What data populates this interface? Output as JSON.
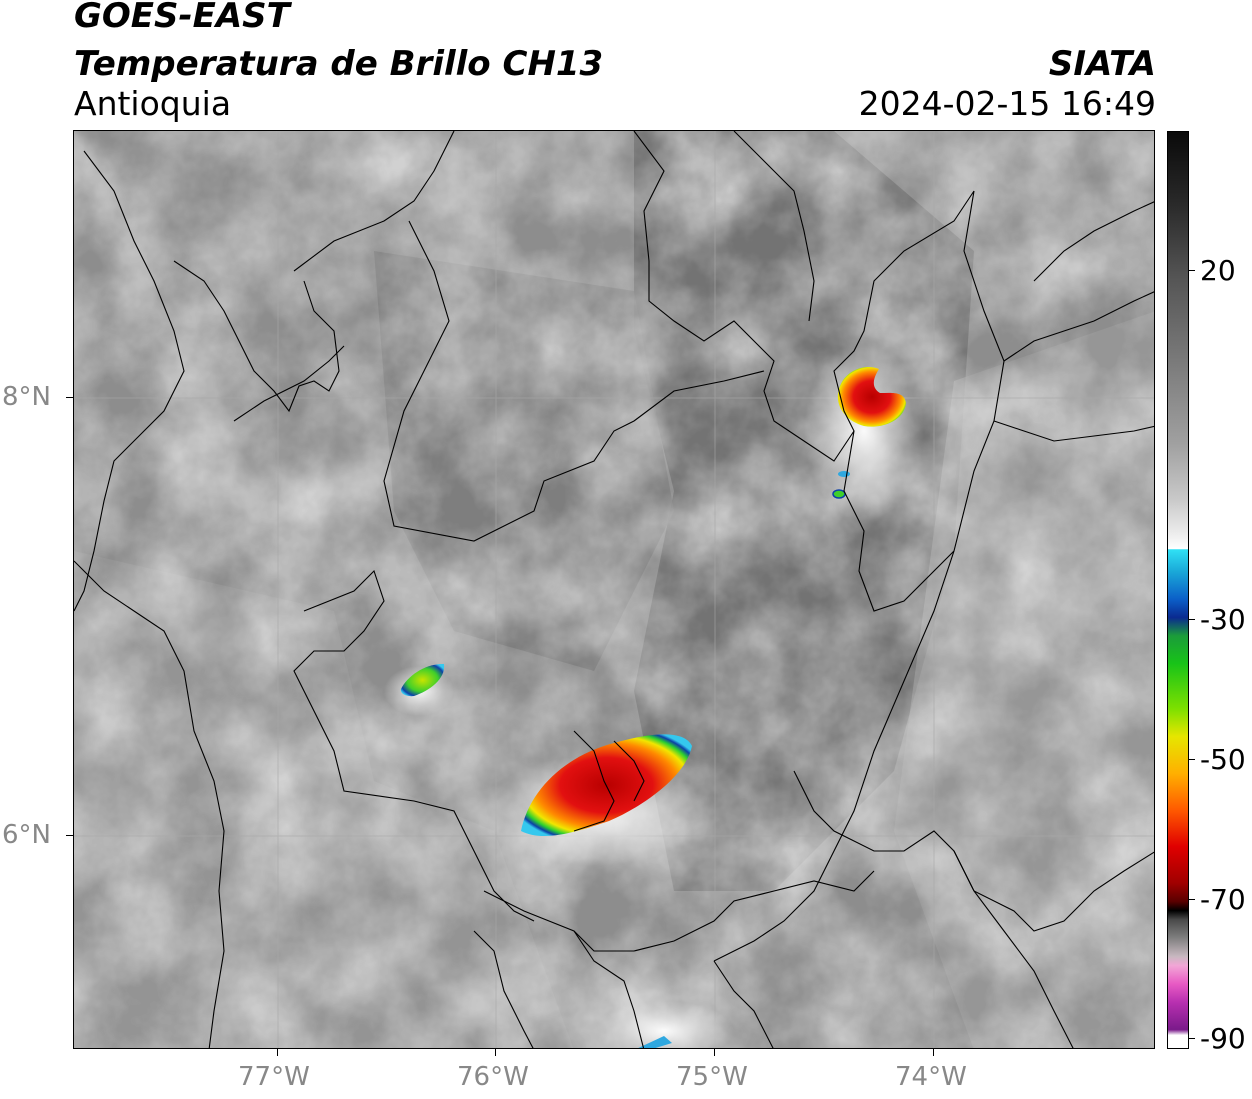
{
  "header": {
    "satellite": "GOES-EAST",
    "product": "Temperatura de Brillo CH13",
    "region": "Antioquia",
    "organization": "SIATA",
    "timestamp": "2024-02-15 16:49"
  },
  "axes": {
    "lat_labels": [
      {
        "value": 8,
        "label": "8°N"
      },
      {
        "value": 6,
        "label": "6°N"
      }
    ],
    "lon_labels": [
      {
        "value": -77,
        "label": "77°W"
      },
      {
        "value": -76,
        "label": "76°W"
      },
      {
        "value": -75,
        "label": "75°W"
      },
      {
        "value": -74,
        "label": "74°W"
      }
    ]
  },
  "colorbar": {
    "ticks": [
      {
        "value": 20,
        "label": "20"
      },
      {
        "value": -30,
        "label": "-30"
      },
      {
        "value": -50,
        "label": "-50"
      },
      {
        "value": -70,
        "label": "-70"
      },
      {
        "value": -90,
        "label": "-90"
      }
    ]
  }
}
